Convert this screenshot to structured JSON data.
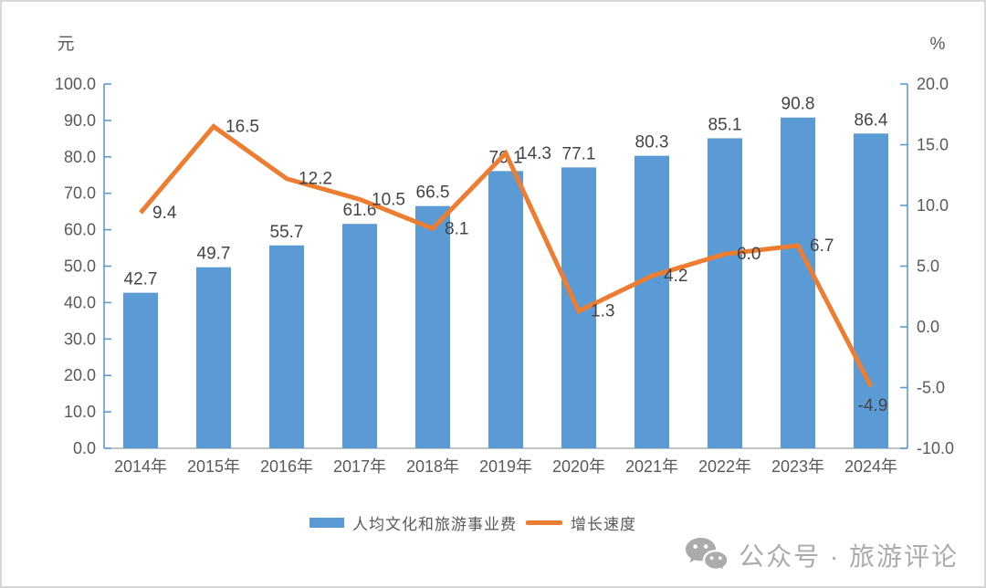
{
  "chart": {
    "left_unit": "元",
    "right_unit": "%"
  },
  "chart_data": {
    "type": "bar+line combo",
    "categories": [
      "2014年",
      "2015年",
      "2016年",
      "2017年",
      "2018年",
      "2019年",
      "2020年",
      "2021年",
      "2022年",
      "2023年",
      "2024年"
    ],
    "series": [
      {
        "name": "人均文化和旅游事业费",
        "type": "bar",
        "axis": "left",
        "color": "#5B9BD5",
        "values": [
          42.7,
          49.7,
          55.7,
          61.6,
          66.5,
          76.1,
          77.1,
          80.3,
          85.1,
          90.8,
          86.4
        ]
      },
      {
        "name": "增长速度",
        "type": "line",
        "axis": "right",
        "color": "#ED7D31",
        "values": [
          9.4,
          16.5,
          12.2,
          10.5,
          8.1,
          14.3,
          1.3,
          4.2,
          6.0,
          6.7,
          -4.9
        ]
      }
    ],
    "left_axis": {
      "unit": "元",
      "min": 0,
      "max": 100,
      "step": 10,
      "tick_labels": [
        "0.0",
        "10.0",
        "20.0",
        "30.0",
        "40.0",
        "50.0",
        "60.0",
        "70.0",
        "80.0",
        "90.0",
        "100.0"
      ]
    },
    "right_axis": {
      "unit": "%",
      "min": -10,
      "max": 20,
      "step": 5,
      "tick_labels": [
        "-10.0",
        "-5.0",
        "0.0",
        "5.0",
        "10.0",
        "15.0",
        "20.0"
      ]
    },
    "grid": false,
    "data_labels": true,
    "legend_position": "bottom-center"
  },
  "legend": {
    "items": [
      {
        "label": "人均文化和旅游事业费",
        "swatch": "bar",
        "color": "#5B9BD5"
      },
      {
        "label": "增长速度",
        "swatch": "line",
        "color": "#ED7D31"
      }
    ]
  },
  "watermark": {
    "icon": "wechat-icon",
    "text": "公众号 · 旅游评论"
  },
  "colors": {
    "bar": "#5B9BD5",
    "line": "#ED7D31",
    "axis_line": "#5B9BD5",
    "x_axis_line": "#B0B0B0",
    "tick_text": "#595959",
    "data_label_text": "#444444",
    "watermark": "#ABABAB",
    "background": "#FFFFFF",
    "border": "#D7D7D7"
  }
}
